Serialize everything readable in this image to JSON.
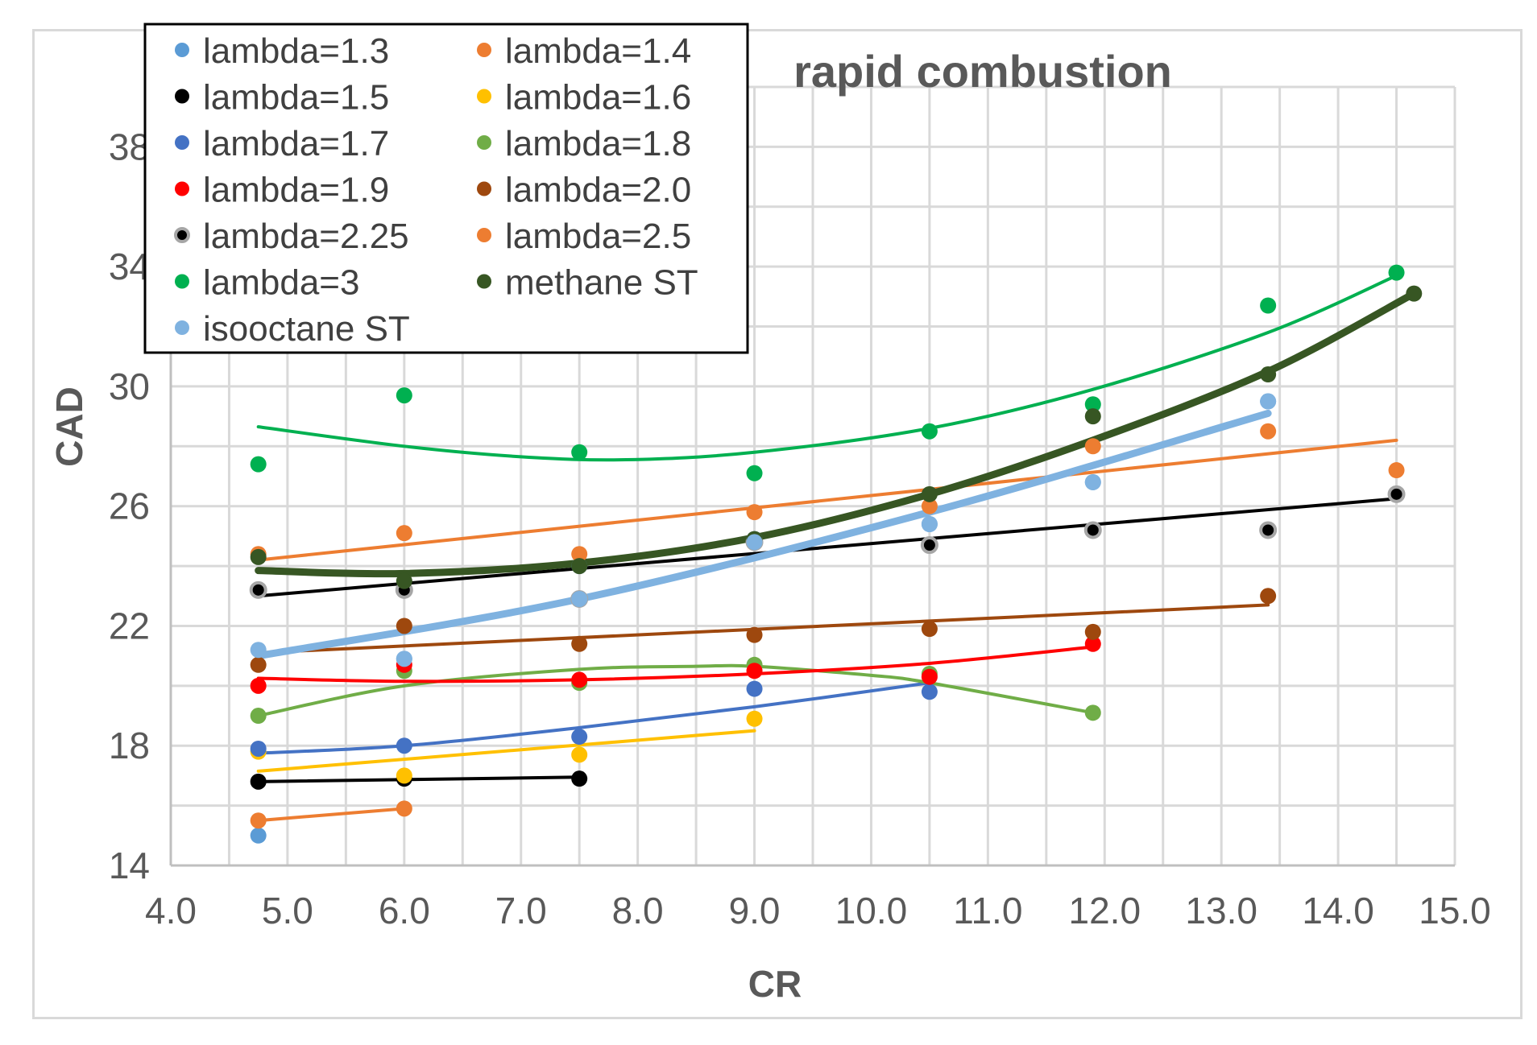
{
  "chart_data": {
    "type": "scatter",
    "title": "rapid combustion",
    "xlabel": "CR",
    "ylabel": "CAD",
    "xlim": [
      4.0,
      15.0
    ],
    "ylim": [
      14,
      40
    ],
    "x_ticks": [
      "4.0",
      "5.0",
      "6.0",
      "7.0",
      "8.0",
      "9.0",
      "10.0",
      "11.0",
      "12.0",
      "13.0",
      "14.0",
      "15.0"
    ],
    "y_ticks": [
      "14",
      "18",
      "22",
      "26",
      "30",
      "34",
      "38"
    ],
    "x_tick_values": [
      4,
      5,
      6,
      7,
      8,
      9,
      10,
      11,
      12,
      13,
      14,
      15
    ],
    "y_tick_values": [
      14,
      18,
      22,
      26,
      30,
      34,
      38
    ],
    "grid": true,
    "legend_position": "top-left",
    "series": [
      {
        "name": "lambda=1.3",
        "color": "#5b9bd5",
        "marker": "filled",
        "x": [
          4.75,
          6.0,
          7.5,
          9.0,
          10.5,
          11.9,
          13.4
        ],
        "y": [
          15.0,
          20.9,
          24.0,
          24.9,
          25.4,
          26.8,
          29.5
        ],
        "trend": []
      },
      {
        "name": "lambda=1.4",
        "color": "#ed7d31",
        "marker": "filled",
        "x": [
          4.75,
          6.0
        ],
        "y": [
          15.5,
          15.9
        ],
        "trend": [
          [
            4.75,
            15.5
          ],
          [
            6.0,
            15.9
          ]
        ]
      },
      {
        "name": "lambda=1.5",
        "color": "#000000",
        "marker": "filled",
        "x": [
          4.75,
          6.0,
          7.5
        ],
        "y": [
          16.8,
          16.9,
          16.9
        ],
        "trend": [
          [
            4.75,
            16.8
          ],
          [
            7.5,
            16.95
          ]
        ]
      },
      {
        "name": "lambda=1.6",
        "color": "#ffc000",
        "marker": "filled",
        "x": [
          4.75,
          6.0,
          7.5,
          9.0
        ],
        "y": [
          17.8,
          17.0,
          17.7,
          18.9
        ],
        "trend": [
          [
            4.75,
            17.15
          ],
          [
            9.0,
            18.5
          ]
        ]
      },
      {
        "name": "lambda=1.7",
        "color": "#4472c4",
        "marker": "filled",
        "x": [
          4.75,
          6.0,
          7.5,
          9.0,
          10.5
        ],
        "y": [
          17.9,
          18.0,
          18.3,
          19.9,
          19.8
        ],
        "trend": [
          [
            4.75,
            17.75
          ],
          [
            6.0,
            18.0
          ],
          [
            7.5,
            18.6
          ],
          [
            9.0,
            19.3
          ],
          [
            10.5,
            20.1
          ]
        ]
      },
      {
        "name": "lambda=1.8",
        "color": "#70ad47",
        "marker": "filled",
        "x": [
          4.75,
          6.0,
          7.5,
          9.0,
          10.5,
          11.9
        ],
        "y": [
          19.0,
          20.5,
          20.1,
          20.7,
          20.4,
          19.1
        ],
        "trend": [
          [
            4.75,
            19.0
          ],
          [
            6.0,
            20.0
          ],
          [
            7.5,
            20.55
          ],
          [
            8.5,
            20.65
          ],
          [
            9.0,
            20.65
          ],
          [
            10.0,
            20.35
          ],
          [
            10.5,
            20.1
          ],
          [
            11.9,
            19.1
          ]
        ]
      },
      {
        "name": "lambda=1.9",
        "color": "#ff0000",
        "marker": "filled",
        "x": [
          4.75,
          6.0,
          7.5,
          9.0,
          10.5,
          11.9
        ],
        "y": [
          20.0,
          20.7,
          20.2,
          20.5,
          20.3,
          21.4
        ],
        "trend": [
          [
            4.75,
            20.25
          ],
          [
            6.0,
            20.15
          ],
          [
            7.5,
            20.2
          ],
          [
            9.0,
            20.4
          ],
          [
            10.5,
            20.75
          ],
          [
            11.9,
            21.3
          ]
        ]
      },
      {
        "name": "lambda=2.0",
        "color": "#9e480e",
        "marker": "filled",
        "x": [
          4.75,
          6.0,
          7.5,
          9.0,
          10.5,
          11.9,
          13.4
        ],
        "y": [
          20.7,
          22.0,
          21.4,
          21.7,
          21.9,
          21.8,
          23.0
        ],
        "trend": [
          [
            4.75,
            21.1
          ],
          [
            13.4,
            22.7
          ]
        ]
      },
      {
        "name": "lambda=2.25",
        "color": "#000000",
        "marker": "ringed",
        "x": [
          4.75,
          6.0,
          7.5,
          9.0,
          10.5,
          11.9,
          13.4,
          14.5
        ],
        "y": [
          23.2,
          23.2,
          22.9,
          24.8,
          24.7,
          25.2,
          25.2,
          26.4
        ],
        "trend": [
          [
            4.75,
            23.0
          ],
          [
            14.5,
            26.25
          ]
        ]
      },
      {
        "name": "lambda=2.5",
        "color": "#ed7d31",
        "marker": "filled",
        "x": [
          4.75,
          6.0,
          7.5,
          9.0,
          10.5,
          11.9,
          13.4,
          14.5
        ],
        "y": [
          24.4,
          25.1,
          24.4,
          25.8,
          26.0,
          28.0,
          28.5,
          27.2
        ],
        "trend": [
          [
            4.75,
            24.2
          ],
          [
            14.5,
            28.2
          ]
        ]
      },
      {
        "name": "lambda=3",
        "color": "#00b050",
        "marker": "filled",
        "x": [
          4.75,
          6.0,
          7.5,
          9.0,
          10.5,
          11.9,
          13.4,
          14.5
        ],
        "y": [
          27.4,
          29.7,
          27.8,
          27.1,
          28.5,
          29.4,
          32.7,
          33.8
        ],
        "trend": [
          [
            4.75,
            28.65
          ],
          [
            6.0,
            28.0
          ],
          [
            7.0,
            27.65
          ],
          [
            7.9,
            27.55
          ],
          [
            9.0,
            27.8
          ],
          [
            10.5,
            28.6
          ],
          [
            11.9,
            29.9
          ],
          [
            13.4,
            31.8
          ],
          [
            14.5,
            33.7
          ]
        ]
      },
      {
        "name": "methane ST",
        "color": "#375623",
        "marker": "filled",
        "x": [
          4.75,
          6.0,
          7.5,
          9.0,
          10.5,
          11.9,
          13.4,
          14.65
        ],
        "y": [
          24.3,
          23.5,
          24.0,
          24.9,
          26.4,
          29.0,
          30.4,
          33.1
        ],
        "trend": [
          [
            4.75,
            23.85
          ],
          [
            6.0,
            23.75
          ],
          [
            7.5,
            24.1
          ],
          [
            9.0,
            24.95
          ],
          [
            10.5,
            26.4
          ],
          [
            11.9,
            28.2
          ],
          [
            13.4,
            30.5
          ],
          [
            14.65,
            33.1
          ]
        ]
      },
      {
        "name": "isooctane ST",
        "color": "#7fb2e0",
        "marker": "filled",
        "x": [
          4.75,
          6.0,
          7.5,
          9.0,
          10.5,
          11.9,
          13.4
        ],
        "y": [
          21.2,
          20.9,
          22.9,
          24.8,
          25.4,
          26.8,
          29.5
        ],
        "trend": [
          [
            4.75,
            21.0
          ],
          [
            7.5,
            22.9
          ],
          [
            10.5,
            25.8
          ],
          [
            13.4,
            29.1
          ]
        ]
      }
    ]
  }
}
